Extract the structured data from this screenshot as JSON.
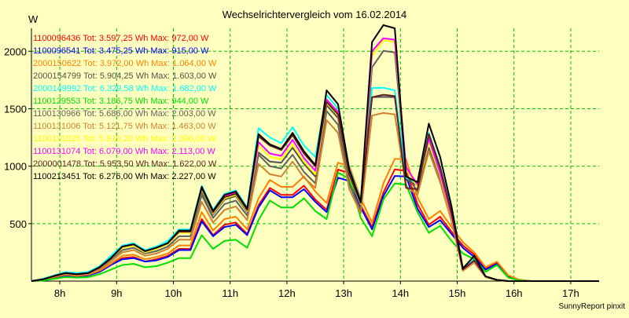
{
  "chart_data": {
    "type": "line",
    "title": "Wechselrichtervergleich vom 16.02.2014",
    "ylabel": "W",
    "footer": "SunnyReport pinxit",
    "xlim": [
      7.5,
      17.5
    ],
    "ylim": [
      0,
      2200
    ],
    "grid": true,
    "legend_position": "top-left",
    "xticks": [
      8,
      9,
      10,
      11,
      12,
      13,
      14,
      15,
      16,
      17
    ],
    "xtick_labels": [
      "8h",
      "9h",
      "10h",
      "11h",
      "12h",
      "13h",
      "14h",
      "15h",
      "16h",
      "17h"
    ],
    "yticks": [
      500,
      1000,
      1500,
      2000
    ],
    "ytick_labels": [
      "500",
      "1000",
      "1500",
      "2000"
    ],
    "x": [
      7.5,
      7.7,
      7.9,
      8.1,
      8.3,
      8.5,
      8.7,
      8.9,
      9.1,
      9.3,
      9.5,
      9.7,
      9.9,
      10.1,
      10.3,
      10.5,
      10.7,
      10.9,
      11.1,
      11.3,
      11.5,
      11.7,
      11.9,
      12.1,
      12.3,
      12.5,
      12.7,
      12.9,
      13.1,
      13.3,
      13.5,
      13.7,
      13.9,
      14.1,
      14.3,
      14.5,
      14.7,
      14.9,
      15.1,
      15.3,
      15.5,
      15.7,
      15.9,
      16.1,
      16.3,
      16.5,
      16.7,
      16.9,
      17.1,
      17.3,
      17.5
    ],
    "series": [
      {
        "name": "1100096436",
        "legend_text": "1100096436 Tot: 3.597,25 Wh Max: 972,00 W",
        "color": "#ff0000",
        "values": [
          0,
          10,
          30,
          50,
          40,
          50,
          80,
          140,
          200,
          210,
          170,
          190,
          220,
          280,
          280,
          540,
          400,
          490,
          510,
          410,
          660,
          810,
          750,
          750,
          830,
          710,
          620,
          970,
          940,
          660,
          470,
          770,
          972,
          960,
          670,
          490,
          560,
          430,
          310,
          230,
          110,
          160,
          40,
          10,
          0,
          0,
          0,
          0,
          0,
          0,
          0
        ]
      },
      {
        "name": "1100096541",
        "legend_text": "1100096541 Tot: 3.475,25 Wh Max: 915,00 W",
        "color": "#0000ff",
        "values": [
          0,
          10,
          30,
          50,
          40,
          50,
          80,
          140,
          190,
          200,
          170,
          180,
          210,
          270,
          270,
          520,
          390,
          470,
          490,
          400,
          640,
          790,
          730,
          730,
          800,
          690,
          600,
          900,
          870,
          640,
          450,
          740,
          915,
          910,
          630,
          470,
          530,
          410,
          290,
          210,
          100,
          150,
          40,
          10,
          0,
          0,
          0,
          0,
          0,
          0,
          0
        ]
      },
      {
        "name": "2000150622",
        "legend_text": "2000150622 Tot: 3.972,00 Wh Max: 1.064,00 W",
        "color": "#ff8000",
        "values": [
          0,
          10,
          35,
          55,
          45,
          55,
          90,
          150,
          220,
          230,
          190,
          210,
          240,
          310,
          310,
          600,
          440,
          540,
          560,
          450,
          720,
          880,
          820,
          820,
          910,
          780,
          680,
          1030,
          1000,
          720,
          510,
          850,
          1064,
          1060,
          730,
          540,
          610,
          470,
          340,
          250,
          120,
          170,
          50,
          10,
          0,
          0,
          0,
          0,
          0,
          0,
          0
        ]
      },
      {
        "name": "2000154799",
        "legend_text": "2000154799 Tot: 5.904,25 Wh Max: 1.603,00 W",
        "color": "#505050",
        "values": [
          0,
          15,
          45,
          70,
          60,
          70,
          120,
          200,
          290,
          310,
          250,
          280,
          320,
          420,
          420,
          780,
          580,
          710,
          740,
          600,
          1120,
          1040,
          1030,
          1160,
          1020,
          910,
          1530,
          1420,
          900,
          660,
          1600,
          1603,
          1600,
          880,
          830,
          1250,
          960,
          580,
          100,
          180,
          40,
          10,
          0,
          0,
          0,
          0,
          0,
          0,
          0,
          0,
          0
        ]
      },
      {
        "name": "2000149992",
        "legend_text": "2000149992 Tot: 6.329,58 Wh Max: 1.682,00 W",
        "color": "#00ffff",
        "values": [
          0,
          20,
          50,
          80,
          70,
          80,
          130,
          220,
          310,
          330,
          270,
          300,
          350,
          450,
          450,
          830,
          620,
          760,
          790,
          640,
          1330,
          1250,
          1200,
          1340,
          1180,
          1080,
          1620,
          1500,
          980,
          700,
          1680,
          1682,
          1660,
          900,
          850,
          1290,
          1000,
          600,
          110,
          190,
          40,
          10,
          0,
          0,
          0,
          0,
          0,
          0,
          0,
          0,
          0
        ]
      },
      {
        "name": "1100129553",
        "legend_text": "1100129553 Tot: 3.186,75 Wh Max: 944,00 W",
        "color": "#00e000",
        "values": [
          0,
          5,
          20,
          35,
          30,
          35,
          60,
          100,
          140,
          150,
          120,
          130,
          160,
          200,
          200,
          400,
          280,
          350,
          360,
          290,
          530,
          700,
          640,
          640,
          720,
          610,
          540,
          944,
          890,
          550,
          390,
          710,
          850,
          840,
          600,
          420,
          480,
          350,
          240,
          190,
          80,
          140,
          30,
          5,
          0,
          0,
          0,
          0,
          0,
          0,
          0
        ]
      },
      {
        "name": "1100130966",
        "legend_text": "1100130966 Tot: 5.686,00 Wh Max: 2.003,00 W",
        "color": "#606060",
        "values": [
          0,
          15,
          40,
          65,
          55,
          65,
          110,
          190,
          270,
          290,
          240,
          260,
          300,
          390,
          390,
          750,
          550,
          670,
          700,
          570,
          1100,
          1000,
          980,
          1100,
          950,
          850,
          1480,
          1360,
          840,
          620,
          1860,
          2003,
          1990,
          930,
          780,
          1160,
          880,
          540,
          90,
          160,
          35,
          10,
          0,
          0,
          0,
          0,
          0,
          0,
          0,
          0,
          0
        ]
      },
      {
        "name": "1100131006",
        "legend_text": "1100131006 Tot: 5.121,75 Wh Max: 1.463,00 W",
        "color": "#d08030",
        "values": [
          0,
          15,
          40,
          60,
          50,
          60,
          100,
          170,
          250,
          270,
          220,
          240,
          280,
          360,
          360,
          690,
          510,
          620,
          650,
          530,
          1020,
          930,
          910,
          1040,
          900,
          810,
          1400,
          1290,
          800,
          590,
          1440,
          1463,
          1450,
          820,
          750,
          1130,
          860,
          520,
          90,
          160,
          35,
          10,
          0,
          0,
          0,
          0,
          0,
          0,
          0,
          0,
          0
        ]
      },
      {
        "name": "1100131025",
        "legend_text": "1100131025 Tot: 5.919,20 Wh Max: 2.096,00 W",
        "color": "#ffff00",
        "values": [
          0,
          15,
          45,
          70,
          60,
          70,
          120,
          200,
          290,
          310,
          250,
          280,
          320,
          420,
          420,
          800,
          590,
          720,
          750,
          610,
          1180,
          1080,
          1060,
          1190,
          1040,
          930,
          1550,
          1440,
          910,
          670,
          1960,
          2096,
          2080,
          970,
          820,
          1210,
          920,
          560,
          95,
          170,
          38,
          10,
          0,
          0,
          0,
          0,
          0,
          0,
          0,
          0,
          0
        ]
      },
      {
        "name": "1100131074",
        "legend_text": "1100131074 Tot: 6.079,00 Wh Max: 2.113,00 W",
        "color": "#ff00ff",
        "values": [
          0,
          15,
          45,
          70,
          60,
          70,
          120,
          200,
          300,
          320,
          260,
          290,
          330,
          430,
          430,
          820,
          600,
          740,
          770,
          620,
          1210,
          1110,
          1090,
          1230,
          1070,
          960,
          1580,
          1470,
          930,
          680,
          2000,
          2113,
          2100,
          990,
          840,
          1240,
          940,
          570,
          100,
          175,
          40,
          10,
          0,
          0,
          0,
          0,
          0,
          0,
          0,
          0,
          0
        ]
      },
      {
        "name": "2000001478",
        "legend_text": "2000001478 Tot: 5.953,50 Wh Max: 1.622,00 W",
        "color": "#602020",
        "values": [
          0,
          15,
          45,
          70,
          60,
          70,
          120,
          200,
          300,
          320,
          260,
          290,
          330,
          430,
          430,
          810,
          600,
          730,
          760,
          620,
          1260,
          1180,
          1140,
          1270,
          1110,
          1000,
          1560,
          1450,
          920,
          680,
          1600,
          1622,
          1610,
          810,
          800,
          1280,
          990,
          590,
          100,
          180,
          40,
          10,
          0,
          0,
          0,
          0,
          0,
          0,
          0,
          0,
          0
        ]
      },
      {
        "name": "1100213451",
        "legend_text": "1100213451 Tot: 6.276,00 Wh Max: 2.227,00 W",
        "color": "#000000",
        "values": [
          0,
          15,
          45,
          70,
          60,
          70,
          120,
          200,
          300,
          320,
          260,
          290,
          330,
          440,
          440,
          820,
          610,
          750,
          780,
          630,
          1280,
          1190,
          1150,
          1290,
          1130,
          1010,
          1660,
          1540,
          970,
          690,
          2080,
          2227,
          2200,
          910,
          860,
          1370,
          1080,
          650,
          110,
          220,
          40,
          10,
          0,
          0,
          0,
          0,
          0,
          0,
          0,
          0,
          0
        ]
      }
    ]
  }
}
